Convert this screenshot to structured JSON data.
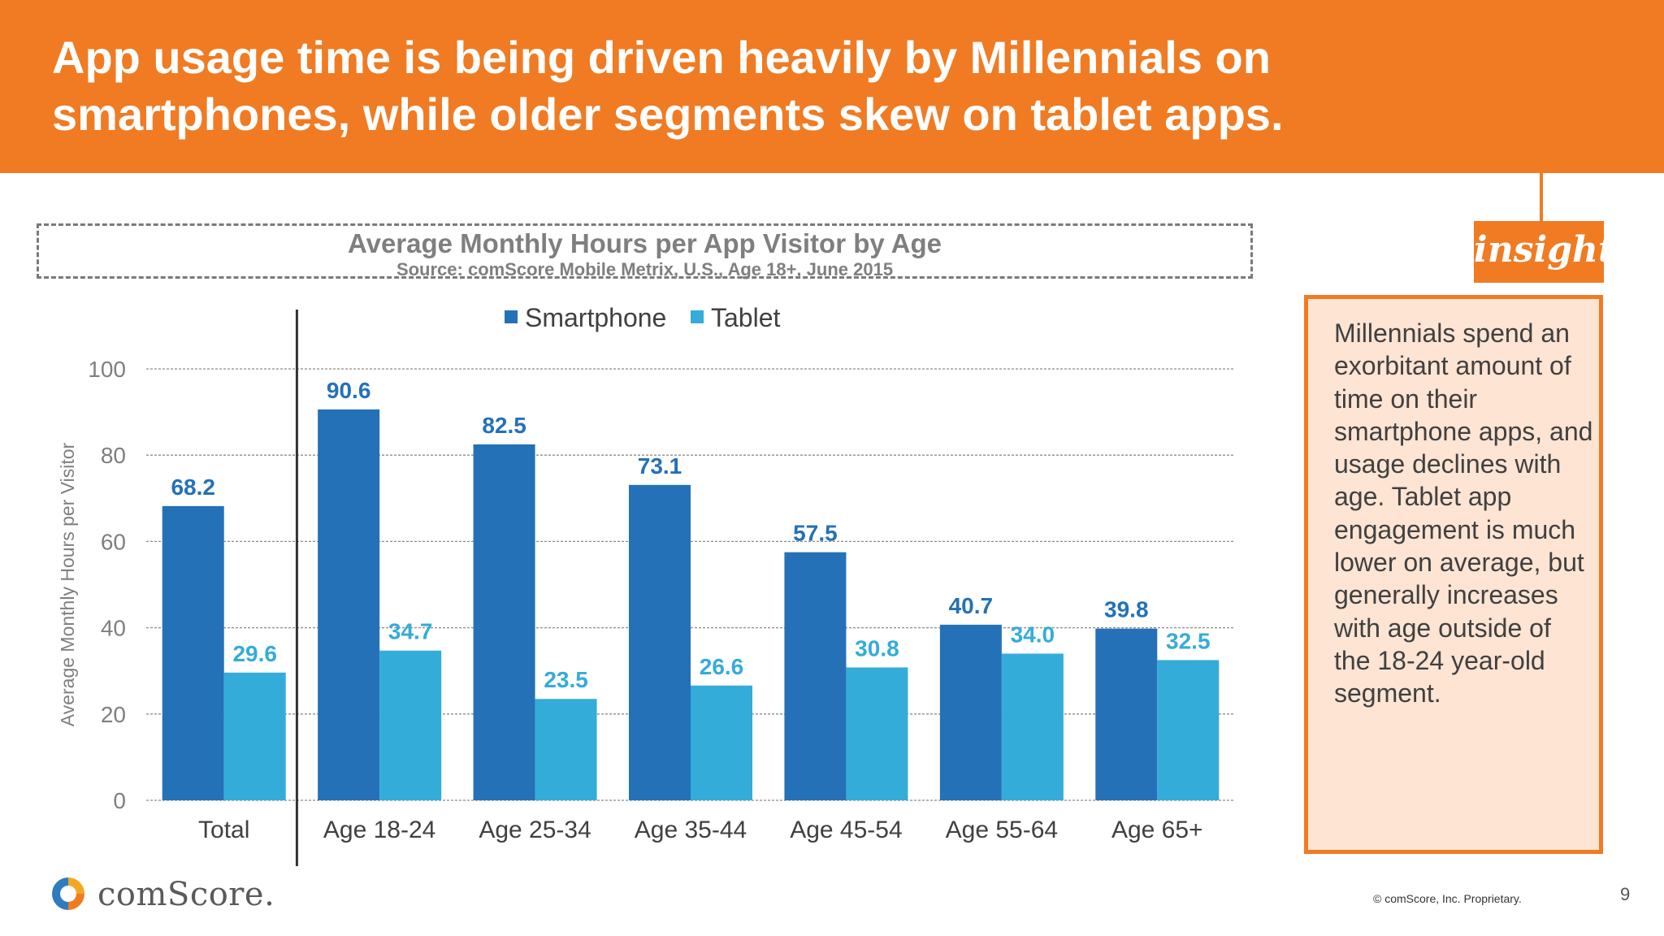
{
  "header": {
    "title": "App usage time is being driven heavily by Millennials on smartphones, while older segments skew on tablet apps."
  },
  "chart_data": {
    "type": "bar",
    "title": "Average Monthly Hours per App Visitor by Age",
    "subtitle": "Source: comScore Mobile Metrix, U.S., Age 18+, June 2015",
    "categories": [
      "Total",
      "Age 18-24",
      "Age 25-34",
      "Age 35-44",
      "Age 45-54",
      "Age 55-64",
      "Age 65+"
    ],
    "series": [
      {
        "name": "Smartphone",
        "color": "#2471b8",
        "label_color": "#2471b8",
        "values": [
          68.2,
          90.6,
          82.5,
          73.1,
          57.5,
          40.7,
          39.8
        ]
      },
      {
        "name": "Tablet",
        "color": "#34acd9",
        "label_color": "#34acd9",
        "values": [
          29.6,
          34.7,
          23.5,
          26.6,
          30.8,
          34.0,
          32.5
        ]
      }
    ],
    "xlabel": "",
    "ylabel": "Average Monthly Hours per Visitor",
    "ylim": [
      0,
      100
    ],
    "yticks": [
      0,
      20,
      40,
      60,
      80,
      100
    ],
    "gridlines": true,
    "legend_position": "top-center",
    "divider_after_category": "Total"
  },
  "insight": {
    "tag": "insight",
    "text": "Millennials spend an exorbitant amount of time on their smartphone apps, and usage declines with age. Tablet app engagement is much lower on average, but generally increases with age outside of the 18-24 year-old segment."
  },
  "footer": {
    "logo_text": "comScore.",
    "copyright": "© comScore, Inc. Proprietary.",
    "page_number": "9"
  },
  "colors": {
    "accent": "#f07b23",
    "insight_fill": "#fde4d3",
    "smartphone": "#2471b8",
    "tablet": "#34acd9"
  }
}
